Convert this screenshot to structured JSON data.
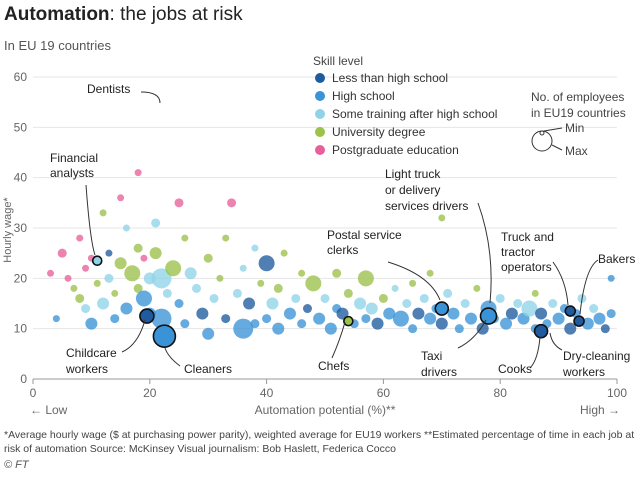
{
  "title_bold": "Automation",
  "title_rest": ": the jobs at risk",
  "subtitle": "In EU 19 countries",
  "footnote": "*Average hourly wage ($ at purchasing power parity), weighted average for EU19 workers   **Estimated percentage of time in each job at risk of automation   Source: McKinsey   Visual journalism: Bob Haslett, Federica Cocco",
  "copyright": "© FT",
  "colors": {
    "less_than_high_school": "#1f5b9e",
    "high_school": "#3a93d6",
    "some_training": "#8fd3e8",
    "university": "#9bc24a",
    "postgraduate": "#e8609a",
    "grid": "#e6e6e6",
    "axis_text": "#666666"
  },
  "chart_data": {
    "type": "scatter",
    "xlabel": "Automation potential (%)**",
    "ylabel": "Hourly wage*",
    "x_low_label": "← Low",
    "x_high_label": "High →",
    "xlim": [
      0,
      100
    ],
    "ylim": [
      0,
      60
    ],
    "xticks": [
      0,
      20,
      40,
      60,
      80,
      100
    ],
    "yticks": [
      0,
      10,
      20,
      30,
      40,
      50,
      60
    ],
    "grid": true,
    "legend": {
      "title": "Skill level",
      "placement": "top-right",
      "entries": [
        {
          "label": "Less than high school",
          "color": "#1f5b9e"
        },
        {
          "label": "High school",
          "color": "#3a93d6"
        },
        {
          "label": "Some training after high school",
          "color": "#8fd3e8"
        },
        {
          "label": "University degree",
          "color": "#9bc24a"
        },
        {
          "label": "Postgraduate education",
          "color": "#e8609a"
        }
      ],
      "size_title": "No. of employees in EU19 countries",
      "size_min": "Min",
      "size_max": "Max"
    },
    "labeled_points": [
      {
        "label": "Dentists",
        "x": 23,
        "y": 54
      },
      {
        "label": "Financial analysts",
        "x": 11,
        "y": 23.5
      },
      {
        "label": "Childcare workers",
        "x": 19.5,
        "y": 12.5
      },
      {
        "label": "Cleaners",
        "x": 22.5,
        "y": 8.5
      },
      {
        "label": "Chefs",
        "x": 54,
        "y": 11.5
      },
      {
        "label": "Postal service clerks",
        "x": 70,
        "y": 14
      },
      {
        "label": "Light truck or delivery services drivers",
        "x": 77.5,
        "y": 12.5
      },
      {
        "label": "Taxi drivers",
        "x": 77,
        "y": 13
      },
      {
        "label": "Truck and tractor operators",
        "x": 92,
        "y": 13.5
      },
      {
        "label": "Cooks",
        "x": 87,
        "y": 9.5
      },
      {
        "label": "Bakers",
        "x": 93.5,
        "y": 11.5
      },
      {
        "label": "Dry-cleaning workers",
        "x": 93,
        "y": 11.5
      }
    ],
    "points": [
      [
        3,
        21,
        4,
        2
      ],
      [
        4,
        12,
        1,
        2
      ],
      [
        5,
        25,
        4,
        3
      ],
      [
        6,
        20,
        4,
        2
      ],
      [
        7,
        18,
        3,
        2
      ],
      [
        8,
        16,
        3,
        3
      ],
      [
        8,
        28,
        4,
        2
      ],
      [
        9,
        22,
        4,
        2
      ],
      [
        9,
        14,
        2,
        3
      ],
      [
        10,
        11,
        1,
        4
      ],
      [
        10,
        24,
        4,
        2
      ],
      [
        11,
        19,
        3,
        2
      ],
      [
        12,
        33,
        3,
        2
      ],
      [
        12,
        15,
        2,
        4
      ],
      [
        13,
        25,
        0,
        2
      ],
      [
        13,
        20,
        2,
        3
      ],
      [
        14,
        12,
        1,
        3
      ],
      [
        14,
        17,
        3,
        2
      ],
      [
        15,
        23,
        3,
        4
      ],
      [
        15,
        36,
        4,
        2
      ],
      [
        16,
        30,
        2,
        2
      ],
      [
        16,
        14,
        1,
        4
      ],
      [
        17,
        21,
        3,
        5
      ],
      [
        18,
        18,
        3,
        3
      ],
      [
        18,
        26,
        3,
        3
      ],
      [
        18,
        41,
        4,
        2
      ],
      [
        19,
        24,
        4,
        2
      ],
      [
        19,
        16,
        1,
        5
      ],
      [
        20,
        20,
        2,
        4
      ],
      [
        20,
        13,
        1,
        4
      ],
      [
        21,
        31,
        2,
        3
      ],
      [
        21,
        25,
        3,
        4
      ],
      [
        22,
        20,
        2,
        6
      ],
      [
        22,
        12,
        1,
        6
      ],
      [
        23,
        17,
        2,
        3
      ],
      [
        24,
        22,
        3,
        5
      ],
      [
        25,
        15,
        1,
        3
      ],
      [
        25,
        35,
        4,
        3
      ],
      [
        26,
        28,
        3,
        2
      ],
      [
        26,
        11,
        1,
        3
      ],
      [
        27,
        21,
        2,
        4
      ],
      [
        28,
        18,
        2,
        3
      ],
      [
        29,
        13,
        0,
        4
      ],
      [
        30,
        24,
        3,
        3
      ],
      [
        30,
        9,
        1,
        4
      ],
      [
        31,
        16,
        2,
        3
      ],
      [
        32,
        20,
        3,
        2
      ],
      [
        33,
        12,
        0,
        3
      ],
      [
        33,
        28,
        3,
        2
      ],
      [
        34,
        35,
        4,
        3
      ],
      [
        35,
        17,
        2,
        3
      ],
      [
        36,
        10,
        1,
        6
      ],
      [
        36,
        22,
        2,
        2
      ],
      [
        37,
        15,
        0,
        4
      ],
      [
        38,
        11,
        1,
        3
      ],
      [
        38,
        26,
        2,
        2
      ],
      [
        39,
        19,
        3,
        2
      ],
      [
        40,
        12,
        1,
        3
      ],
      [
        40,
        23,
        0,
        5
      ],
      [
        41,
        15,
        2,
        4
      ],
      [
        42,
        10,
        1,
        4
      ],
      [
        42,
        18,
        3,
        3
      ],
      [
        43,
        25,
        3,
        2
      ],
      [
        44,
        13,
        1,
        4
      ],
      [
        45,
        16,
        2,
        3
      ],
      [
        46,
        11,
        1,
        3
      ],
      [
        46,
        21,
        3,
        2
      ],
      [
        47,
        14,
        0,
        3
      ],
      [
        48,
        19,
        3,
        5
      ],
      [
        49,
        12,
        1,
        4
      ],
      [
        50,
        16,
        2,
        3
      ],
      [
        51,
        10,
        1,
        4
      ],
      [
        52,
        14,
        1,
        3
      ],
      [
        52,
        21,
        3,
        3
      ],
      [
        53,
        13,
        0,
        4
      ],
      [
        54,
        17,
        3,
        3
      ],
      [
        55,
        11,
        1,
        3
      ],
      [
        56,
        15,
        2,
        4
      ],
      [
        57,
        12,
        1,
        3
      ],
      [
        57,
        20,
        3,
        5
      ],
      [
        58,
        14,
        2,
        4
      ],
      [
        59,
        11,
        0,
        4
      ],
      [
        60,
        16,
        3,
        3
      ],
      [
        61,
        13,
        1,
        4
      ],
      [
        62,
        18,
        2,
        2
      ],
      [
        63,
        12,
        1,
        5
      ],
      [
        64,
        15,
        2,
        3
      ],
      [
        65,
        10,
        1,
        3
      ],
      [
        65,
        19,
        3,
        2
      ],
      [
        66,
        13,
        0,
        4
      ],
      [
        67,
        16,
        2,
        3
      ],
      [
        68,
        12,
        1,
        4
      ],
      [
        68,
        21,
        3,
        2
      ],
      [
        69,
        14,
        1,
        3
      ],
      [
        70,
        11,
        0,
        4
      ],
      [
        70,
        32,
        3,
        2
      ],
      [
        71,
        17,
        2,
        3
      ],
      [
        72,
        13,
        1,
        4
      ],
      [
        73,
        10,
        1,
        3
      ],
      [
        74,
        15,
        2,
        3
      ],
      [
        75,
        12,
        1,
        4
      ],
      [
        76,
        18,
        3,
        2
      ],
      [
        77,
        10,
        0,
        4
      ],
      [
        78,
        14,
        1,
        5
      ],
      [
        79,
        12,
        1,
        3
      ],
      [
        80,
        16,
        2,
        3
      ],
      [
        81,
        11,
        1,
        4
      ],
      [
        82,
        13,
        0,
        4
      ],
      [
        83,
        15,
        2,
        3
      ],
      [
        84,
        12,
        1,
        4
      ],
      [
        85,
        14,
        2,
        5
      ],
      [
        86,
        10,
        1,
        3
      ],
      [
        86,
        17,
        3,
        2
      ],
      [
        87,
        13,
        0,
        4
      ],
      [
        88,
        11,
        1,
        3
      ],
      [
        89,
        15,
        2,
        3
      ],
      [
        90,
        12,
        1,
        4
      ],
      [
        91,
        14,
        1,
        3
      ],
      [
        92,
        10,
        0,
        4
      ],
      [
        93,
        13,
        1,
        3
      ],
      [
        94,
        16,
        2,
        3
      ],
      [
        95,
        11,
        1,
        4
      ],
      [
        96,
        14,
        2,
        3
      ],
      [
        97,
        12,
        1,
        4
      ],
      [
        98,
        10,
        0,
        3
      ],
      [
        99,
        13,
        1,
        3
      ],
      [
        99,
        20,
        1,
        2
      ]
    ]
  }
}
